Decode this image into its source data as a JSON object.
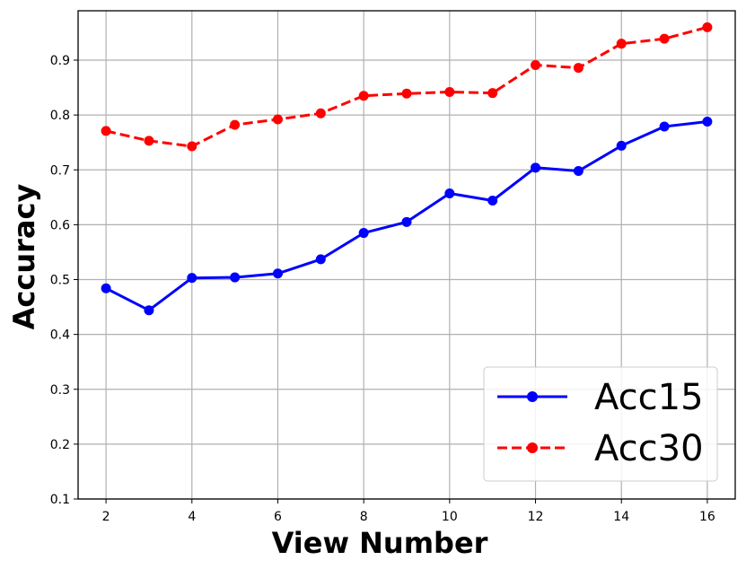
{
  "chart_data": {
    "type": "line",
    "title": "",
    "xlabel": "View Number",
    "ylabel": "Accuracy",
    "x": [
      2,
      3,
      4,
      5,
      6,
      7,
      8,
      9,
      10,
      11,
      12,
      13,
      14,
      15,
      16
    ],
    "xlim": [
      1.35,
      16.65
    ],
    "ylim": [
      0.1,
      0.99
    ],
    "xticks": [
      2,
      4,
      6,
      8,
      10,
      12,
      14,
      16
    ],
    "yticks": [
      0.1,
      0.2,
      0.3,
      0.4,
      0.5,
      0.6,
      0.7,
      0.8,
      0.9
    ],
    "grid": true,
    "legend_position": "lower-right",
    "series": [
      {
        "name": "Acc15",
        "color": "#0000ff",
        "line_style": "solid",
        "marker": "circle",
        "values": [
          0.484,
          0.444,
          0.503,
          0.504,
          0.511,
          0.537,
          0.585,
          0.605,
          0.657,
          0.644,
          0.704,
          0.698,
          0.744,
          0.779,
          0.788
        ]
      },
      {
        "name": "Acc30",
        "color": "#ff0000",
        "line_style": "dashed",
        "marker": "circle",
        "values": [
          0.771,
          0.753,
          0.743,
          0.782,
          0.792,
          0.803,
          0.835,
          0.839,
          0.842,
          0.84,
          0.891,
          0.886,
          0.93,
          0.939,
          0.96
        ]
      }
    ]
  }
}
